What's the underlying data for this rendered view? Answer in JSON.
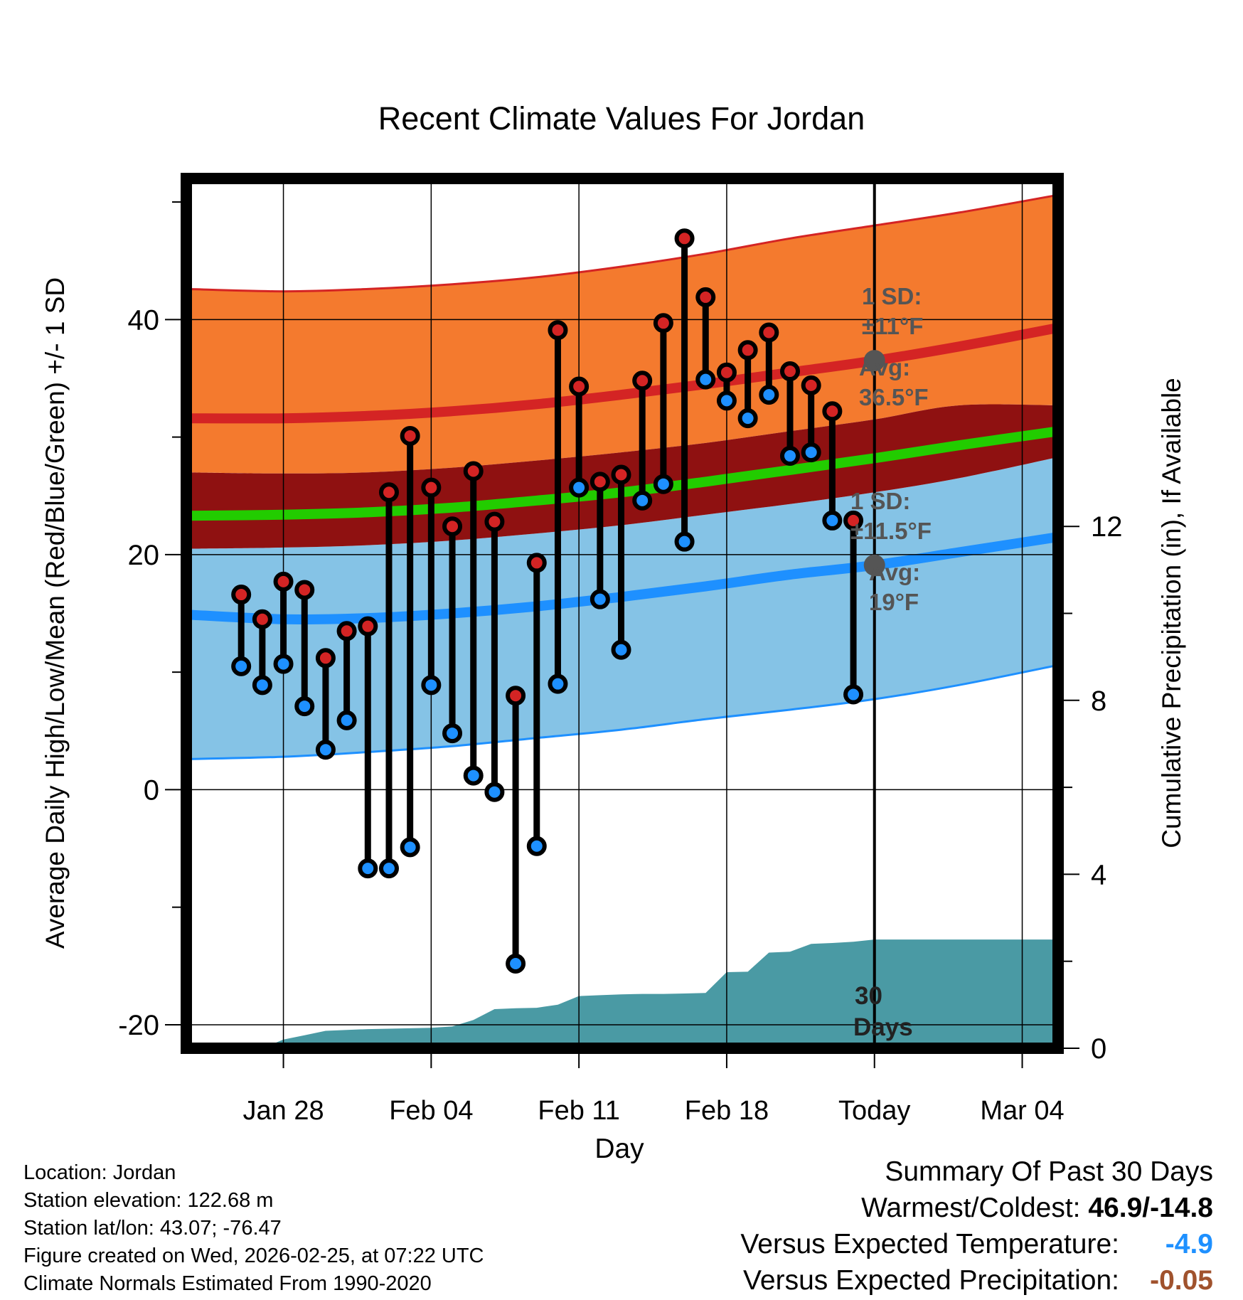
{
  "chart_data": {
    "type": "line",
    "title": "Recent Climate Values For Jordan",
    "xlabel": "Day",
    "ylabel": "Average Daily High/Low/Mean (Red/Blue/Green) +/- 1 SD",
    "y2label": "Cumulative Precipitation (in), If Available",
    "ylim": [
      -22,
      52
    ],
    "y2lim": [
      0,
      20
    ],
    "x_day_range": [
      -32.6,
      8.7
    ],
    "yticks": [
      "40",
      "20",
      "0",
      "-20"
    ],
    "y2ticks": [
      "12",
      "8",
      "4",
      "0"
    ],
    "xtick_labels": [
      "Jan 28",
      "Feb 04",
      "Feb 11",
      "Feb 18",
      "Today",
      "Mar 04"
    ],
    "xtick_days": [
      -28,
      -21,
      -14,
      -7,
      0,
      7
    ],
    "today_day": 0,
    "observed": {
      "days": [
        -30,
        -29,
        -28,
        -27,
        -26,
        -25,
        -24,
        -23,
        -22,
        -21,
        -20,
        -19,
        -18,
        -17,
        -16,
        -15,
        -14,
        -13,
        -12,
        -11,
        -10,
        -9,
        -8,
        -7,
        -6,
        -5,
        -4,
        -3,
        -2,
        -1
      ],
      "highs": [
        16.6,
        14.5,
        17.7,
        17.0,
        11.2,
        13.5,
        13.9,
        25.3,
        30.1,
        25.7,
        22.4,
        27.1,
        22.8,
        8.0,
        19.3,
        39.1,
        34.3,
        26.2,
        26.8,
        34.8,
        39.7,
        46.9,
        41.9,
        35.5,
        37.4,
        38.9,
        35.6,
        34.4,
        32.2,
        22.9
      ],
      "lows": [
        10.5,
        8.9,
        10.7,
        7.1,
        3.4,
        5.9,
        -6.7,
        -6.7,
        -4.9,
        8.9,
        4.8,
        1.2,
        -0.2,
        -14.8,
        -4.8,
        9.0,
        25.7,
        16.2,
        11.9,
        24.6,
        26.0,
        21.1,
        34.9,
        33.1,
        31.6,
        33.6,
        28.4,
        28.7,
        22.9,
        8.1
      ]
    },
    "normals": {
      "days": [
        -32.6,
        -28,
        -24,
        -20,
        -16,
        -12,
        -8,
        -4,
        0,
        4,
        8.7
      ],
      "high_avg": [
        31.6,
        31.6,
        31.8,
        32.2,
        32.8,
        33.6,
        34.5,
        35.5,
        36.5,
        37.7,
        39.3
      ],
      "high_upper": [
        42.6,
        42.4,
        42.6,
        43.0,
        43.6,
        44.5,
        45.6,
        46.9,
        48.0,
        49.1,
        50.6
      ],
      "mean_avg": [
        23.3,
        23.4,
        23.6,
        24.0,
        24.6,
        25.3,
        26.2,
        27.2,
        28.2,
        29.3,
        30.5
      ],
      "mean_upper": [
        27.0,
        26.9,
        27.0,
        27.4,
        28.0,
        28.7,
        29.5,
        30.5,
        31.5,
        32.7,
        32.7
      ],
      "mean_lower": [
        20.5,
        20.6,
        20.8,
        21.2,
        21.8,
        22.5,
        23.4,
        24.3,
        25.3,
        26.5,
        28.3
      ],
      "low_avg": [
        14.9,
        14.5,
        14.6,
        15.0,
        15.6,
        16.4,
        17.3,
        18.3,
        19.1,
        20.2,
        21.5
      ],
      "low_lower": [
        2.6,
        2.8,
        3.2,
        3.7,
        4.4,
        5.1,
        6.0,
        6.8,
        7.7,
        8.9,
        10.6
      ]
    },
    "precip": {
      "days": [
        -32.6,
        -30,
        -29,
        -28,
        -27,
        -26,
        -25,
        -24,
        -23,
        -22,
        -21,
        -20,
        -19,
        -18,
        -17,
        -16,
        -15,
        -14,
        -13,
        -12,
        -11,
        -10,
        -9,
        -8,
        -7,
        -6,
        -5,
        -4,
        -3,
        -2,
        -1,
        0,
        8.7
      ],
      "cumulative": [
        0,
        0,
        0,
        0.2,
        0.3,
        0.4,
        0.42,
        0.44,
        0.45,
        0.46,
        0.47,
        0.5,
        0.65,
        0.9,
        0.92,
        0.93,
        1.0,
        1.2,
        1.22,
        1.24,
        1.25,
        1.25,
        1.26,
        1.27,
        1.75,
        1.76,
        2.2,
        2.22,
        2.4,
        2.42,
        2.45,
        2.5,
        2.5
      ],
      "label_count": "30",
      "label_unit": "Days"
    },
    "annotations": {
      "high_sd_title": "1 SD:",
      "high_sd_value": "±11°F",
      "high_avg_title": "Avg:",
      "high_avg_value": "36.5°F",
      "low_sd_title": "1 SD:",
      "low_sd_value": "±11.5°F",
      "low_avg_title": "Avg:",
      "low_avg_value": "19°F"
    },
    "colors": {
      "high_band": "#f47a2e",
      "high_line": "#d42424",
      "mean_band": "#8f1111",
      "mean_line": "#22cc00",
      "low_band": "#85c3e6",
      "low_line": "#1e90ff",
      "precip": "#4a9aa4",
      "high_dot": "#d42424",
      "low_dot": "#1e90ff",
      "marker": "#555555"
    }
  },
  "footer": {
    "location": "Location: Jordan",
    "elevation": "Station elevation: 122.68 m",
    "latlon": "Station lat/lon: 43.07; -76.47",
    "created": "Figure created on Wed, 2026-02-25, at 07:22 UTC",
    "normals": "Climate Normals Estimated From 1990-2020"
  },
  "summary": {
    "title": "Summary Of Past 30 Days",
    "warm_cold_label": "Warmest/Coldest: ",
    "warm_cold_value": "46.9/-14.8",
    "temp_label": "Versus Expected Temperature:",
    "temp_value": "-4.9",
    "temp_color": "#1e90ff",
    "precip_label": "Versus Expected Precipitation:",
    "precip_value": "-0.05",
    "precip_color": "#a0522d"
  }
}
